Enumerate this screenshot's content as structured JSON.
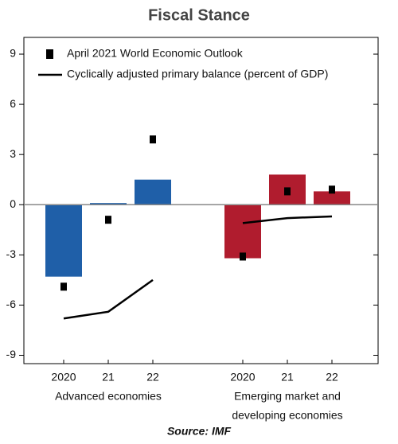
{
  "chart_data": {
    "type": "bar",
    "title": "Fiscal Stance",
    "source": "Source: IMF",
    "ylim": [
      -9.5,
      10
    ],
    "yticks": [
      -9,
      -6,
      -3,
      0,
      3,
      6,
      9
    ],
    "legend": [
      {
        "name": "April 2021 World Economic Outlook",
        "color": "#000000",
        "marker": "square"
      },
      {
        "name": "Cyclically adjusted primary balance (percent of GDP)",
        "color": "#000000",
        "marker": "line"
      }
    ],
    "groups": [
      {
        "label": [
          "Advanced economies"
        ],
        "color": "#1f5fa8",
        "categories": [
          "2020",
          "21",
          "22"
        ],
        "values": [
          -4.3,
          0.1,
          1.5
        ],
        "weo": [
          -4.9,
          -0.9,
          3.9
        ],
        "capb": [
          -6.8,
          -6.4,
          -4.5
        ]
      },
      {
        "label": [
          "Emerging market and",
          "developing economies"
        ],
        "color": "#b01c2e",
        "categories": [
          "2020",
          "21",
          "22"
        ],
        "values": [
          -3.2,
          1.8,
          0.8
        ],
        "weo": [
          -3.1,
          0.8,
          0.9
        ],
        "capb": [
          -1.1,
          -0.8,
          -0.7
        ]
      }
    ]
  }
}
